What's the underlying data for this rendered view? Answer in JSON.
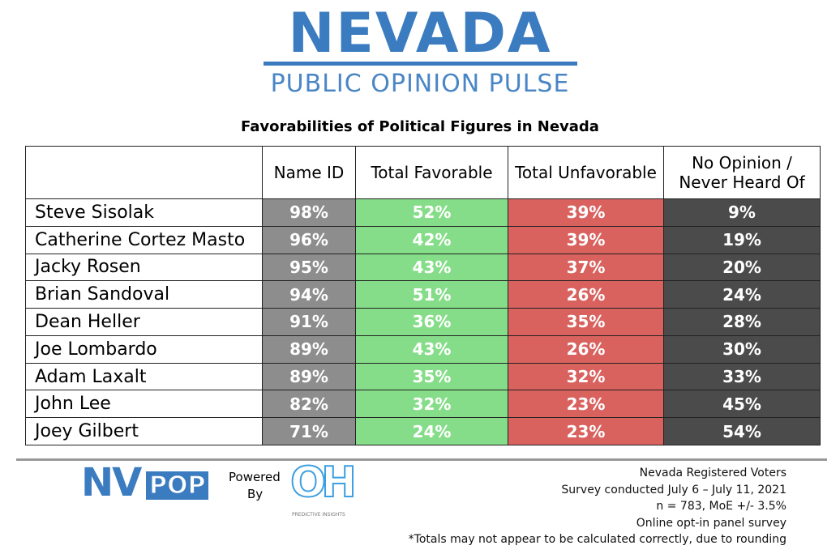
{
  "header": {
    "title": "NEVADA",
    "subtitle": "PUBLIC OPINION PULSE"
  },
  "table": {
    "title": "Favorabilities of Political Figures in Nevada",
    "columns": [
      "",
      "Name ID",
      "Total Favorable",
      "Total Unfavorable",
      "No Opinion / Never Heard Of"
    ],
    "rows": [
      [
        "Steve Sisolak",
        "98%",
        "52%",
        "39%",
        "9%"
      ],
      [
        "Catherine Cortez Masto",
        "96%",
        "42%",
        "39%",
        "19%"
      ],
      [
        "Jacky Rosen",
        "95%",
        "43%",
        "37%",
        "20%"
      ],
      [
        "Brian Sandoval",
        "94%",
        "51%",
        "26%",
        "24%"
      ],
      [
        "Dean Heller",
        "91%",
        "36%",
        "35%",
        "28%"
      ],
      [
        "Joe Lombardo",
        "89%",
        "43%",
        "26%",
        "30%"
      ],
      [
        "Adam Laxalt",
        "89%",
        "35%",
        "32%",
        "33%"
      ],
      [
        "John Lee",
        "82%",
        "32%",
        "23%",
        "45%"
      ],
      [
        "Joey Gilbert",
        "71%",
        "24%",
        "23%",
        "54%"
      ]
    ]
  },
  "footer": {
    "logo": [
      "NV",
      "POP"
    ],
    "powered": [
      "Powered",
      "By"
    ],
    "partner": [
      "OH",
      "PREDICTIVE INSIGHTS"
    ],
    "notes": [
      "Nevada Registered Voters",
      "Survey conducted July 6 – July 11, 2021",
      "n = 783, MoE +/- 3.5%",
      "Online opt-in panel survey",
      "*Totals may not appear to be calculated correctly, due to rounding"
    ]
  }
}
